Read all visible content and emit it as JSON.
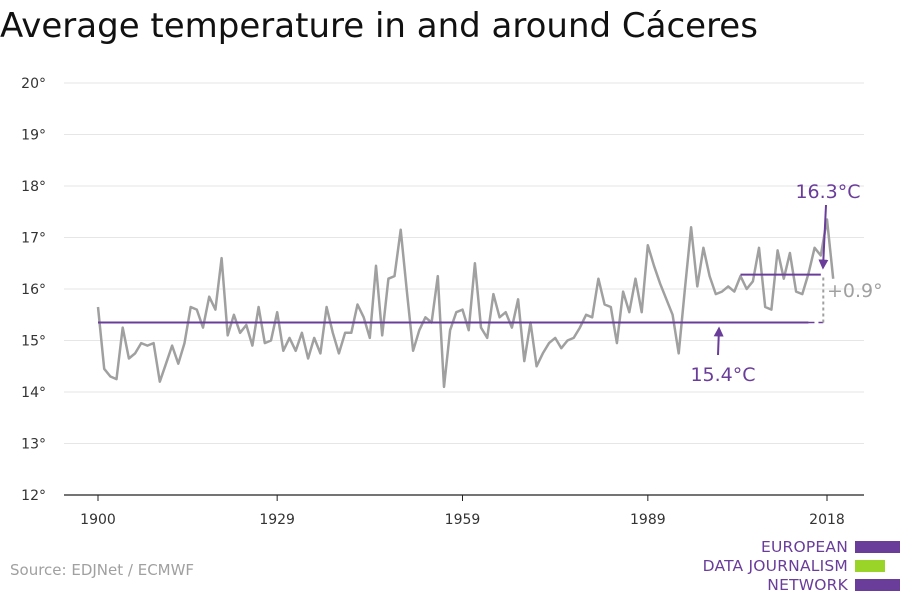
{
  "title": "Average temperature in and around Cáceres",
  "source": "Source: EDJNet / ECMWF",
  "logo": {
    "lines": [
      "EUROPEAN",
      "DATA JOURNALISM",
      "NETWORK"
    ],
    "colors": {
      "text": "#6a3d9a",
      "purple": "#6a3d9a",
      "green": "#9ad429"
    }
  },
  "colors": {
    "series": "#a0a0a0",
    "average": "#6a3d9a",
    "grid": "#e6e6e6",
    "axis": "#222222",
    "diff": "#a0a0a0"
  },
  "chart_data": {
    "type": "line",
    "title": "Average temperature in and around Cáceres",
    "xlabel": "",
    "ylabel": "",
    "xlim": [
      1900,
      2018
    ],
    "ylim": [
      12,
      20
    ],
    "x_ticks": [
      1900,
      1929,
      1959,
      1989,
      2018
    ],
    "y_ticks": [
      12,
      13,
      14,
      15,
      16,
      17,
      18,
      19,
      20
    ],
    "y_tick_labels": [
      "12°",
      "13°",
      "14°",
      "15°",
      "16°",
      "17°",
      "18°",
      "19°",
      "20°"
    ],
    "grid": true,
    "series": [
      {
        "x_start": 1900,
        "values": [
          15.65,
          14.45,
          14.3,
          14.25,
          15.25,
          14.65,
          14.75,
          14.95,
          14.9,
          14.95,
          14.2,
          14.55,
          14.9,
          14.55,
          14.95,
          15.65,
          15.6,
          15.25,
          15.85,
          15.6,
          16.6,
          15.1,
          15.5,
          15.15,
          15.3,
          14.9,
          15.65,
          14.95,
          15.0,
          15.55,
          14.8,
          15.05,
          14.8,
          15.15,
          14.65,
          15.05,
          14.75,
          15.65,
          15.15,
          14.75,
          15.15,
          15.15,
          15.7,
          15.45,
          15.05,
          16.45,
          15.1,
          16.2,
          16.25,
          17.15,
          15.95,
          14.8,
          15.2,
          15.45,
          15.35,
          16.25,
          14.1,
          15.2,
          15.55,
          15.6,
          15.2,
          16.5,
          15.25,
          15.05,
          15.9,
          15.45,
          15.55,
          15.25,
          15.8,
          14.6,
          15.35,
          14.5,
          14.75,
          14.95,
          15.05,
          14.85,
          15.0,
          15.05,
          15.25,
          15.5,
          15.45,
          16.2,
          15.7,
          15.65,
          14.95,
          15.95,
          15.55,
          16.2,
          15.55,
          16.85,
          16.45,
          16.1,
          15.8,
          15.5,
          14.75,
          16.0,
          17.2,
          16.05,
          16.8,
          16.25,
          15.9,
          15.95,
          16.05,
          15.95,
          16.25,
          16.0,
          16.15,
          16.8,
          15.65,
          15.6,
          16.75,
          16.2,
          16.7,
          15.95,
          15.9,
          16.3,
          16.8,
          16.65,
          17.35,
          16.2
        ]
      }
    ],
    "reference_lines": [
      {
        "label": "15.4°C",
        "value": 15.35,
        "from": 1900,
        "to": 2015
      },
      {
        "label": "16.3°C",
        "value": 16.28,
        "from": 2004,
        "to": 2017
      }
    ],
    "difference_annotation": {
      "label": "+0.9°",
      "x": 2018,
      "from": 15.35,
      "to": 16.28
    }
  }
}
